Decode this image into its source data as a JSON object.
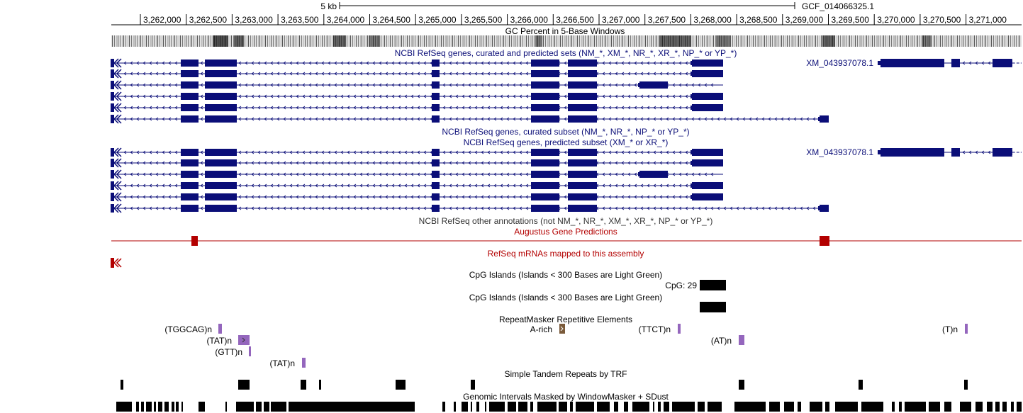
{
  "scale": {
    "label": "5 kb",
    "assembly": "GCF_014066325.1"
  },
  "ruler": {
    "ticks": [
      "3,262,000",
      "3,262,500",
      "3,263,000",
      "3,263,500",
      "3,264,000",
      "3,264,500",
      "3,265,000",
      "3,265,500",
      "3,266,000",
      "3,266,500",
      "3,267,000",
      "3,267,500",
      "3,268,000",
      "3,268,500",
      "3,269,000",
      "3,269,500",
      "3,270,000",
      "3,270,500",
      "3,271,000"
    ]
  },
  "tracks": {
    "gc_percent": "GC Percent in 5-Base Windows",
    "refseq_all": "NCBI RefSeq genes, curated and predicted sets (NM_*, XM_*, NR_*, XR_*, NP_* or YP_*)",
    "refseq_curated": "NCBI RefSeq genes, curated subset (NM_*, NR_*, NP_* or YP_*)",
    "refseq_predicted": "NCBI RefSeq genes, predicted subset (XM_* or XR_*)",
    "refseq_other": "NCBI RefSeq other annotations (not NM_*, NR_*, XM_*, XR_*, NP_* or YP_*)",
    "augustus": "Augustus Gene Predictions",
    "refseq_mrna": "RefSeq mRNAs mapped to this assembly",
    "cpg_1": "CpG Islands (Islands < 300 Bases are Light Green)",
    "cpg_2": "CpG Islands (Islands < 300 Bases are Light Green)",
    "repeatmasker": "RepeatMasker Repetitive Elements",
    "trf": "Simple Tandem Repeats by TRF",
    "windowmasker": "Genomic Intervals Masked by WindowMasker + SDust"
  },
  "gene_labels": {
    "all_xm": "XM_043937078.1",
    "pred_xm": "XM_043937078.1"
  },
  "cpg_label": "CpG: 29",
  "repeat_labels": [
    "(TGGCAG)n",
    "A-rich",
    "(TTCT)n",
    "(T)n",
    "(TAT)n",
    "(AT)n",
    "(GTT)n",
    "(TAT)n"
  ],
  "colors": {
    "gene": "#0b0e78",
    "augustus": "#b30000",
    "repeat": "#9466bd",
    "black": "#000000"
  }
}
